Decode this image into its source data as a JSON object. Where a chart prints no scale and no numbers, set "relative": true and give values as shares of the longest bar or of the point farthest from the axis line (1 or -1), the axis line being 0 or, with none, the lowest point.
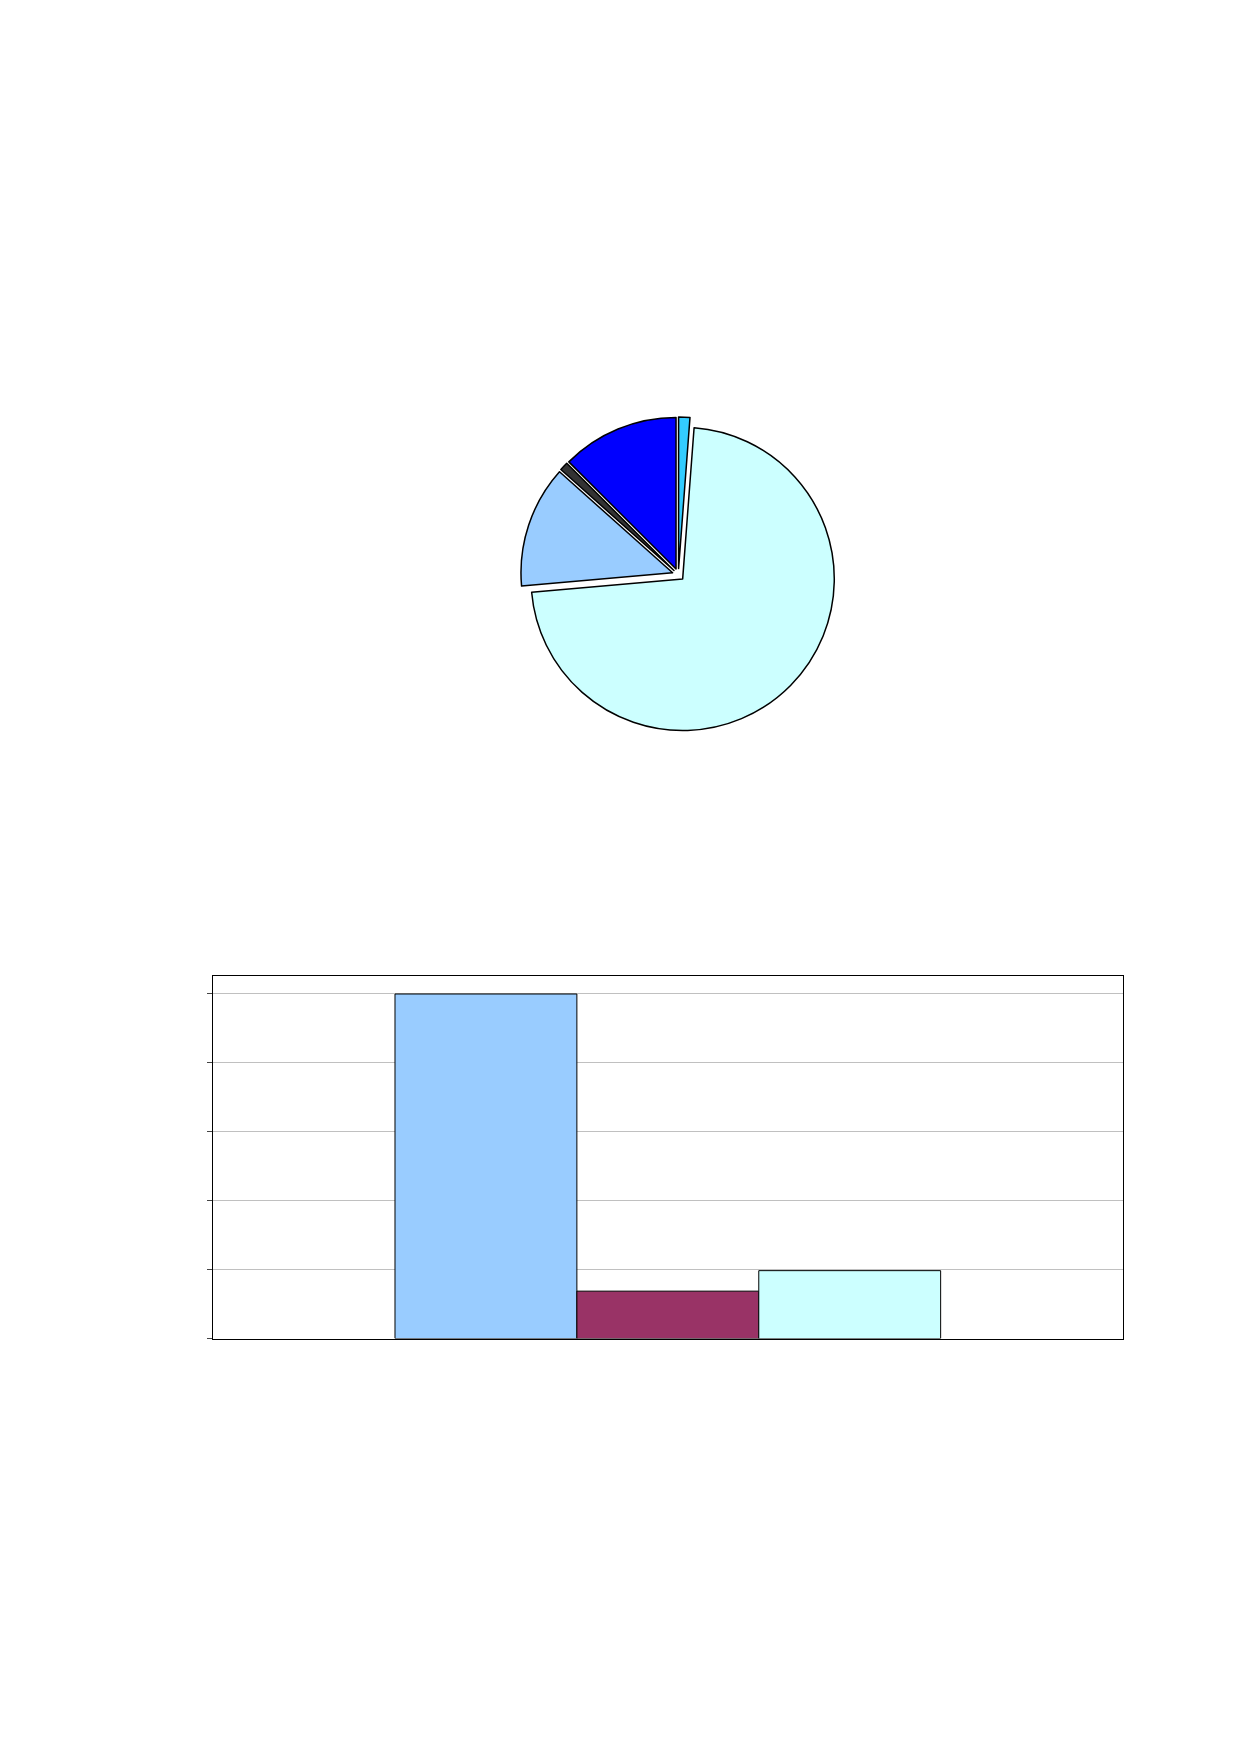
{
  "chart_data": [
    {
      "type": "pie",
      "categories": [
        null,
        null,
        null,
        null,
        null
      ],
      "values": [
        1.2,
        72.4,
        13,
        0.9,
        12.5
      ],
      "colors": [
        "#33ccff",
        "#ccffff",
        "#99ccff",
        "#333333",
        "#0000ff"
      ]
    },
    {
      "type": "bar",
      "relative": true,
      "categories": [
        null
      ],
      "grid": "y",
      "series": [
        {
          "color": "#99ccff",
          "values": [
            1
          ]
        },
        {
          "color": "#993366",
          "values": [
            0.1375
          ]
        },
        {
          "color": "#ccffff",
          "values": [
            0.197
          ]
        }
      ]
    }
  ]
}
